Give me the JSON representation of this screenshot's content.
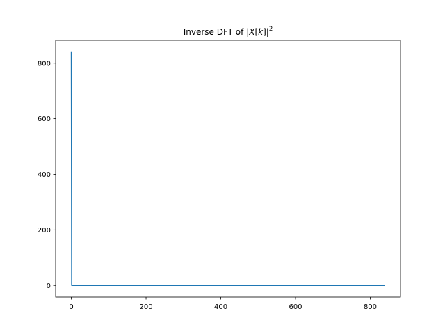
{
  "chart_data": {
    "type": "line",
    "title": "Inverse DFT of |X[k]|²",
    "title_parts": {
      "prefix": "Inverse DFT of |",
      "var": "X",
      "open": "[",
      "index": "k",
      "close": "]|",
      "exponent": "2"
    },
    "xlabel": "",
    "ylabel": "",
    "xlim": [
      -41.95,
      880.95
    ],
    "ylim": [
      -42,
      882
    ],
    "xticks": [
      0,
      200,
      400,
      600,
      800
    ],
    "yticks": [
      0,
      200,
      400,
      600,
      800
    ],
    "xtick_labels": [
      "0",
      "200",
      "400",
      "600",
      "800"
    ],
    "ytick_labels": [
      "0",
      "200",
      "400",
      "600",
      "800"
    ],
    "grid": false,
    "legend": "none",
    "series": [
      {
        "color": "#1f77b4",
        "x": [
          0,
          1,
          839
        ],
        "y": [
          840,
          0,
          0
        ]
      }
    ]
  }
}
